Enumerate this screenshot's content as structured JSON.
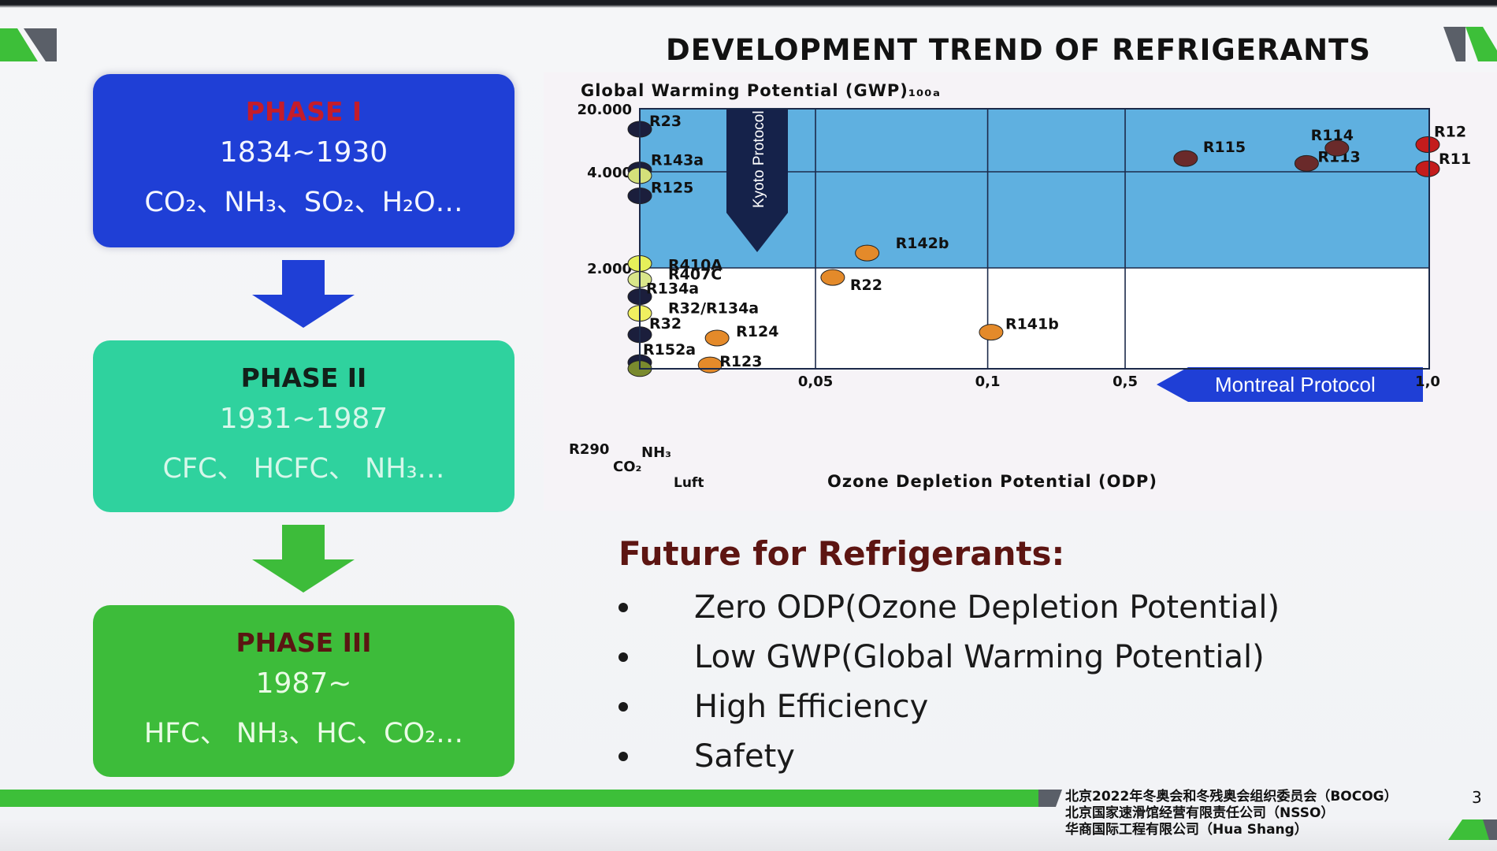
{
  "title": "DEVELOPMENT TREND OF REFRIGERANTS",
  "phases": [
    {
      "title": "PHASE I",
      "years": "1834~1930",
      "items": "CO₂、NH₃、SO₂、H₂O…"
    },
    {
      "title": "PHASE II",
      "years": "1931~1987",
      "items": "CFC、 HCFC、 NH₃…"
    },
    {
      "title": "PHASE III",
      "years": "1987~",
      "items": "HFC、 NH₃、HC、CO₂…"
    }
  ],
  "chart_data": {
    "type": "scatter",
    "title": "",
    "ylabel": "Global Warming Potential (GWP)₁₀₀ₐ",
    "xlabel": "Ozone Depletion Potential (ODP)",
    "x_scale": "piecewise",
    "y_scale": "piecewise",
    "x_ticks": [
      "0,05",
      "0,1",
      "0,5",
      "1,0"
    ],
    "y_ticks": [
      "20.000",
      "4.000",
      "2.000"
    ],
    "x_origin_labels": [
      "CO₂",
      "NH₃",
      "Luft"
    ],
    "y_origin_label": "R290",
    "grid": true,
    "shaded_region": {
      "from_gwp": 2000,
      "to_gwp": 20000,
      "color": "#5fb0e0"
    },
    "points": [
      {
        "label": "R23",
        "odp": 0,
        "gwp": 14800,
        "color": "#1b1e3c"
      },
      {
        "label": "R143a",
        "odp": 0,
        "gwp": 4470,
        "color": "#1b1e3c"
      },
      {
        "label": "",
        "odp": 0,
        "gwp": 3920,
        "color": "#d4e07a"
      },
      {
        "label": "R125",
        "odp": 0,
        "gwp": 3500,
        "color": "#1b1e3c"
      },
      {
        "label": "R410A",
        "odp": 0,
        "gwp": 2090,
        "color": "#e6f05a"
      },
      {
        "label": "R407C",
        "odp": 0,
        "gwp": 1770,
        "color": "#d9e68a"
      },
      {
        "label": "R134a",
        "odp": 0,
        "gwp": 1430,
        "color": "#1b1e3c"
      },
      {
        "label": "R32/R134a",
        "odp": 0,
        "gwp": 1100,
        "color": "#f0f060"
      },
      {
        "label": "R32",
        "odp": 0,
        "gwp": 675,
        "color": "#1b1e3c"
      },
      {
        "label": "R152a",
        "odp": 0,
        "gwp": 124,
        "color": "#1b1e3c"
      },
      {
        "label": "",
        "odp": 0,
        "gwp": 3,
        "color": "#7a8a2e"
      },
      {
        "label": "R124",
        "odp": 0.022,
        "gwp": 609,
        "color": "#e48a2a"
      },
      {
        "label": "R123",
        "odp": 0.02,
        "gwp": 77,
        "color": "#e48a2a"
      },
      {
        "label": "R22",
        "odp": 0.055,
        "gwp": 1810,
        "color": "#e48a2a"
      },
      {
        "label": "R142b",
        "odp": 0.065,
        "gwp": 2310,
        "color": "#e48a2a"
      },
      {
        "label": "R141b",
        "odp": 0.11,
        "gwp": 725,
        "color": "#e48a2a"
      },
      {
        "label": "R115",
        "odp": 0.6,
        "gwp": 7370,
        "color": "#6a2a2a"
      },
      {
        "label": "R113",
        "odp": 0.8,
        "gwp": 6130,
        "color": "#6a2a2a"
      },
      {
        "label": "R114",
        "odp": 0.85,
        "gwp": 10000,
        "color": "#6a2a2a"
      },
      {
        "label": "R12",
        "odp": 1.0,
        "gwp": 10900,
        "color": "#c41c1c"
      },
      {
        "label": "R11",
        "odp": 1.0,
        "gwp": 4750,
        "color": "#c41c1c"
      }
    ],
    "annotations": [
      "Kyoto Protocol",
      "Montreal Protocol"
    ]
  },
  "future": {
    "heading": "Future for Refrigerants:",
    "bullets": [
      "Zero ODP(Ozone Depletion Potential)",
      "Low GWP(Global Warming Potential)",
      "High Efficiency",
      "Safety"
    ]
  },
  "footer": {
    "lines": [
      "北京2022年冬奥会和冬残奥会组织委员会（BOCOG）",
      "北京国家速滑馆经营有限责任公司（NSSO）",
      "华商国际工程有限公司（Hua Shang）"
    ],
    "page_number": "3"
  },
  "colors": {
    "green": "#3dbf39",
    "phase1": "#1f3fd6",
    "phase2": "#2fd29e",
    "phase3": "#3dbc3a",
    "chart_fill": "#5fb0e0"
  }
}
